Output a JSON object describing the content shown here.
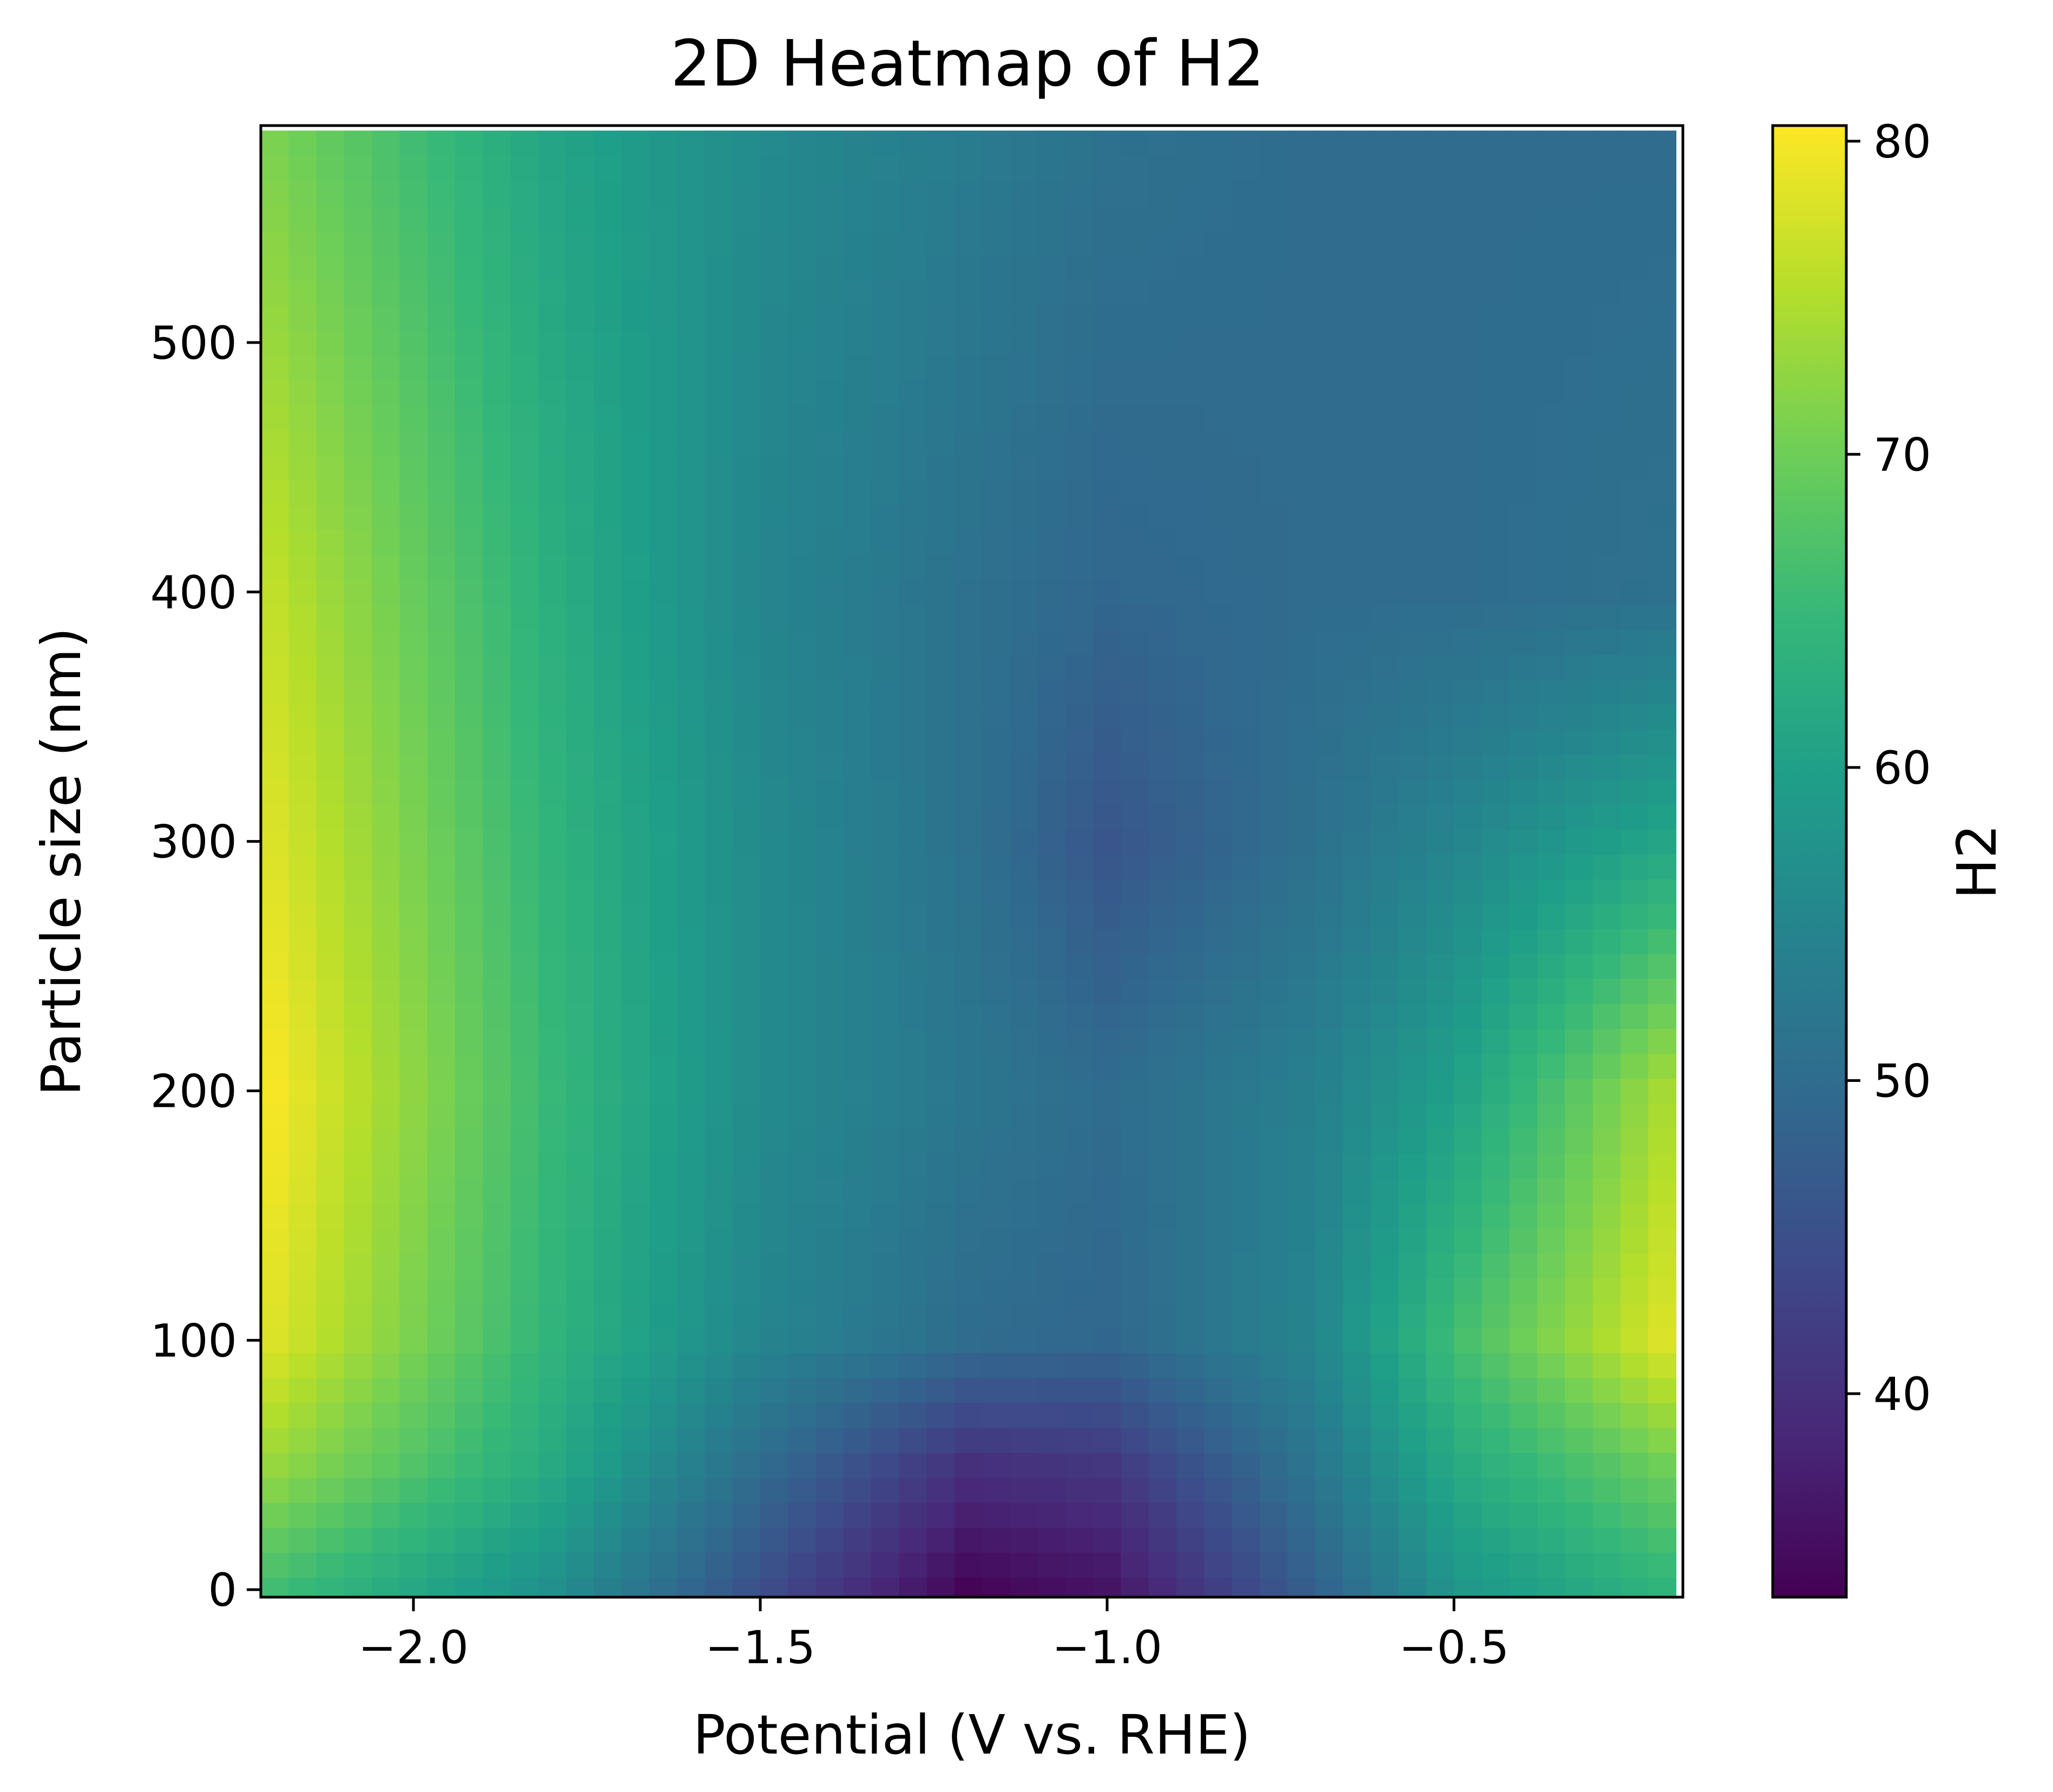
{
  "chart_data": {
    "type": "heatmap",
    "title": "2D Heatmap of H2",
    "xlabel": "Potential (V vs. RHE)",
    "ylabel": "Particle size (nm)",
    "colorbar_label": "H2",
    "colormap": "viridis",
    "xlim": [
      -2.22,
      -0.17
    ],
    "ylim": [
      -3,
      587
    ],
    "clim": [
      33.5,
      80.5
    ],
    "x_ticks": [
      -2.0,
      -1.5,
      -1.0,
      -0.5
    ],
    "x_tick_labels": [
      "−2.0",
      "−1.5",
      "−1.0",
      "−0.5"
    ],
    "y_ticks": [
      0,
      100,
      200,
      300,
      400,
      500
    ],
    "y_tick_labels": [
      "0",
      "100",
      "200",
      "300",
      "400",
      "500"
    ],
    "colorbar_ticks": [
      40,
      50,
      60,
      70,
      80
    ],
    "colorbar_tick_labels": [
      "40",
      "50",
      "60",
      "70",
      "80"
    ],
    "grid": {
      "x_start": -2.2,
      "x_step": 0.04,
      "nx": 51,
      "y_start": 0,
      "y_step": 10,
      "ny": 59
    },
    "anchor_x": [
      -2.2,
      -1.8,
      -1.5,
      -1.2,
      -1.0,
      -0.7,
      -0.5,
      -0.2
    ],
    "anchor_y": [
      0,
      50,
      100,
      200,
      300,
      400,
      580
    ],
    "anchor_values": [
      [
        66,
        57,
        45,
        34,
        36,
        48,
        58,
        64
      ],
      [
        73,
        62,
        50,
        40,
        41,
        52,
        62,
        70
      ],
      [
        78,
        64,
        55,
        50,
        49,
        55,
        66,
        78
      ],
      [
        80,
        65,
        56,
        52,
        50,
        54,
        60,
        74
      ],
      [
        78,
        64,
        56,
        51,
        46,
        51,
        55,
        61
      ],
      [
        76,
        63,
        55,
        51,
        49,
        50,
        50,
        51
      ],
      [
        71,
        61,
        56,
        53,
        51,
        50,
        50,
        50
      ]
    ],
    "colors": {
      "viridis": [
        "#440154",
        "#482878",
        "#3e4989",
        "#31688e",
        "#26828e",
        "#1f9e89",
        "#35b779",
        "#6ece58",
        "#b5de2b",
        "#fde725"
      ],
      "axis": "#000000",
      "background": "#ffffff"
    }
  }
}
